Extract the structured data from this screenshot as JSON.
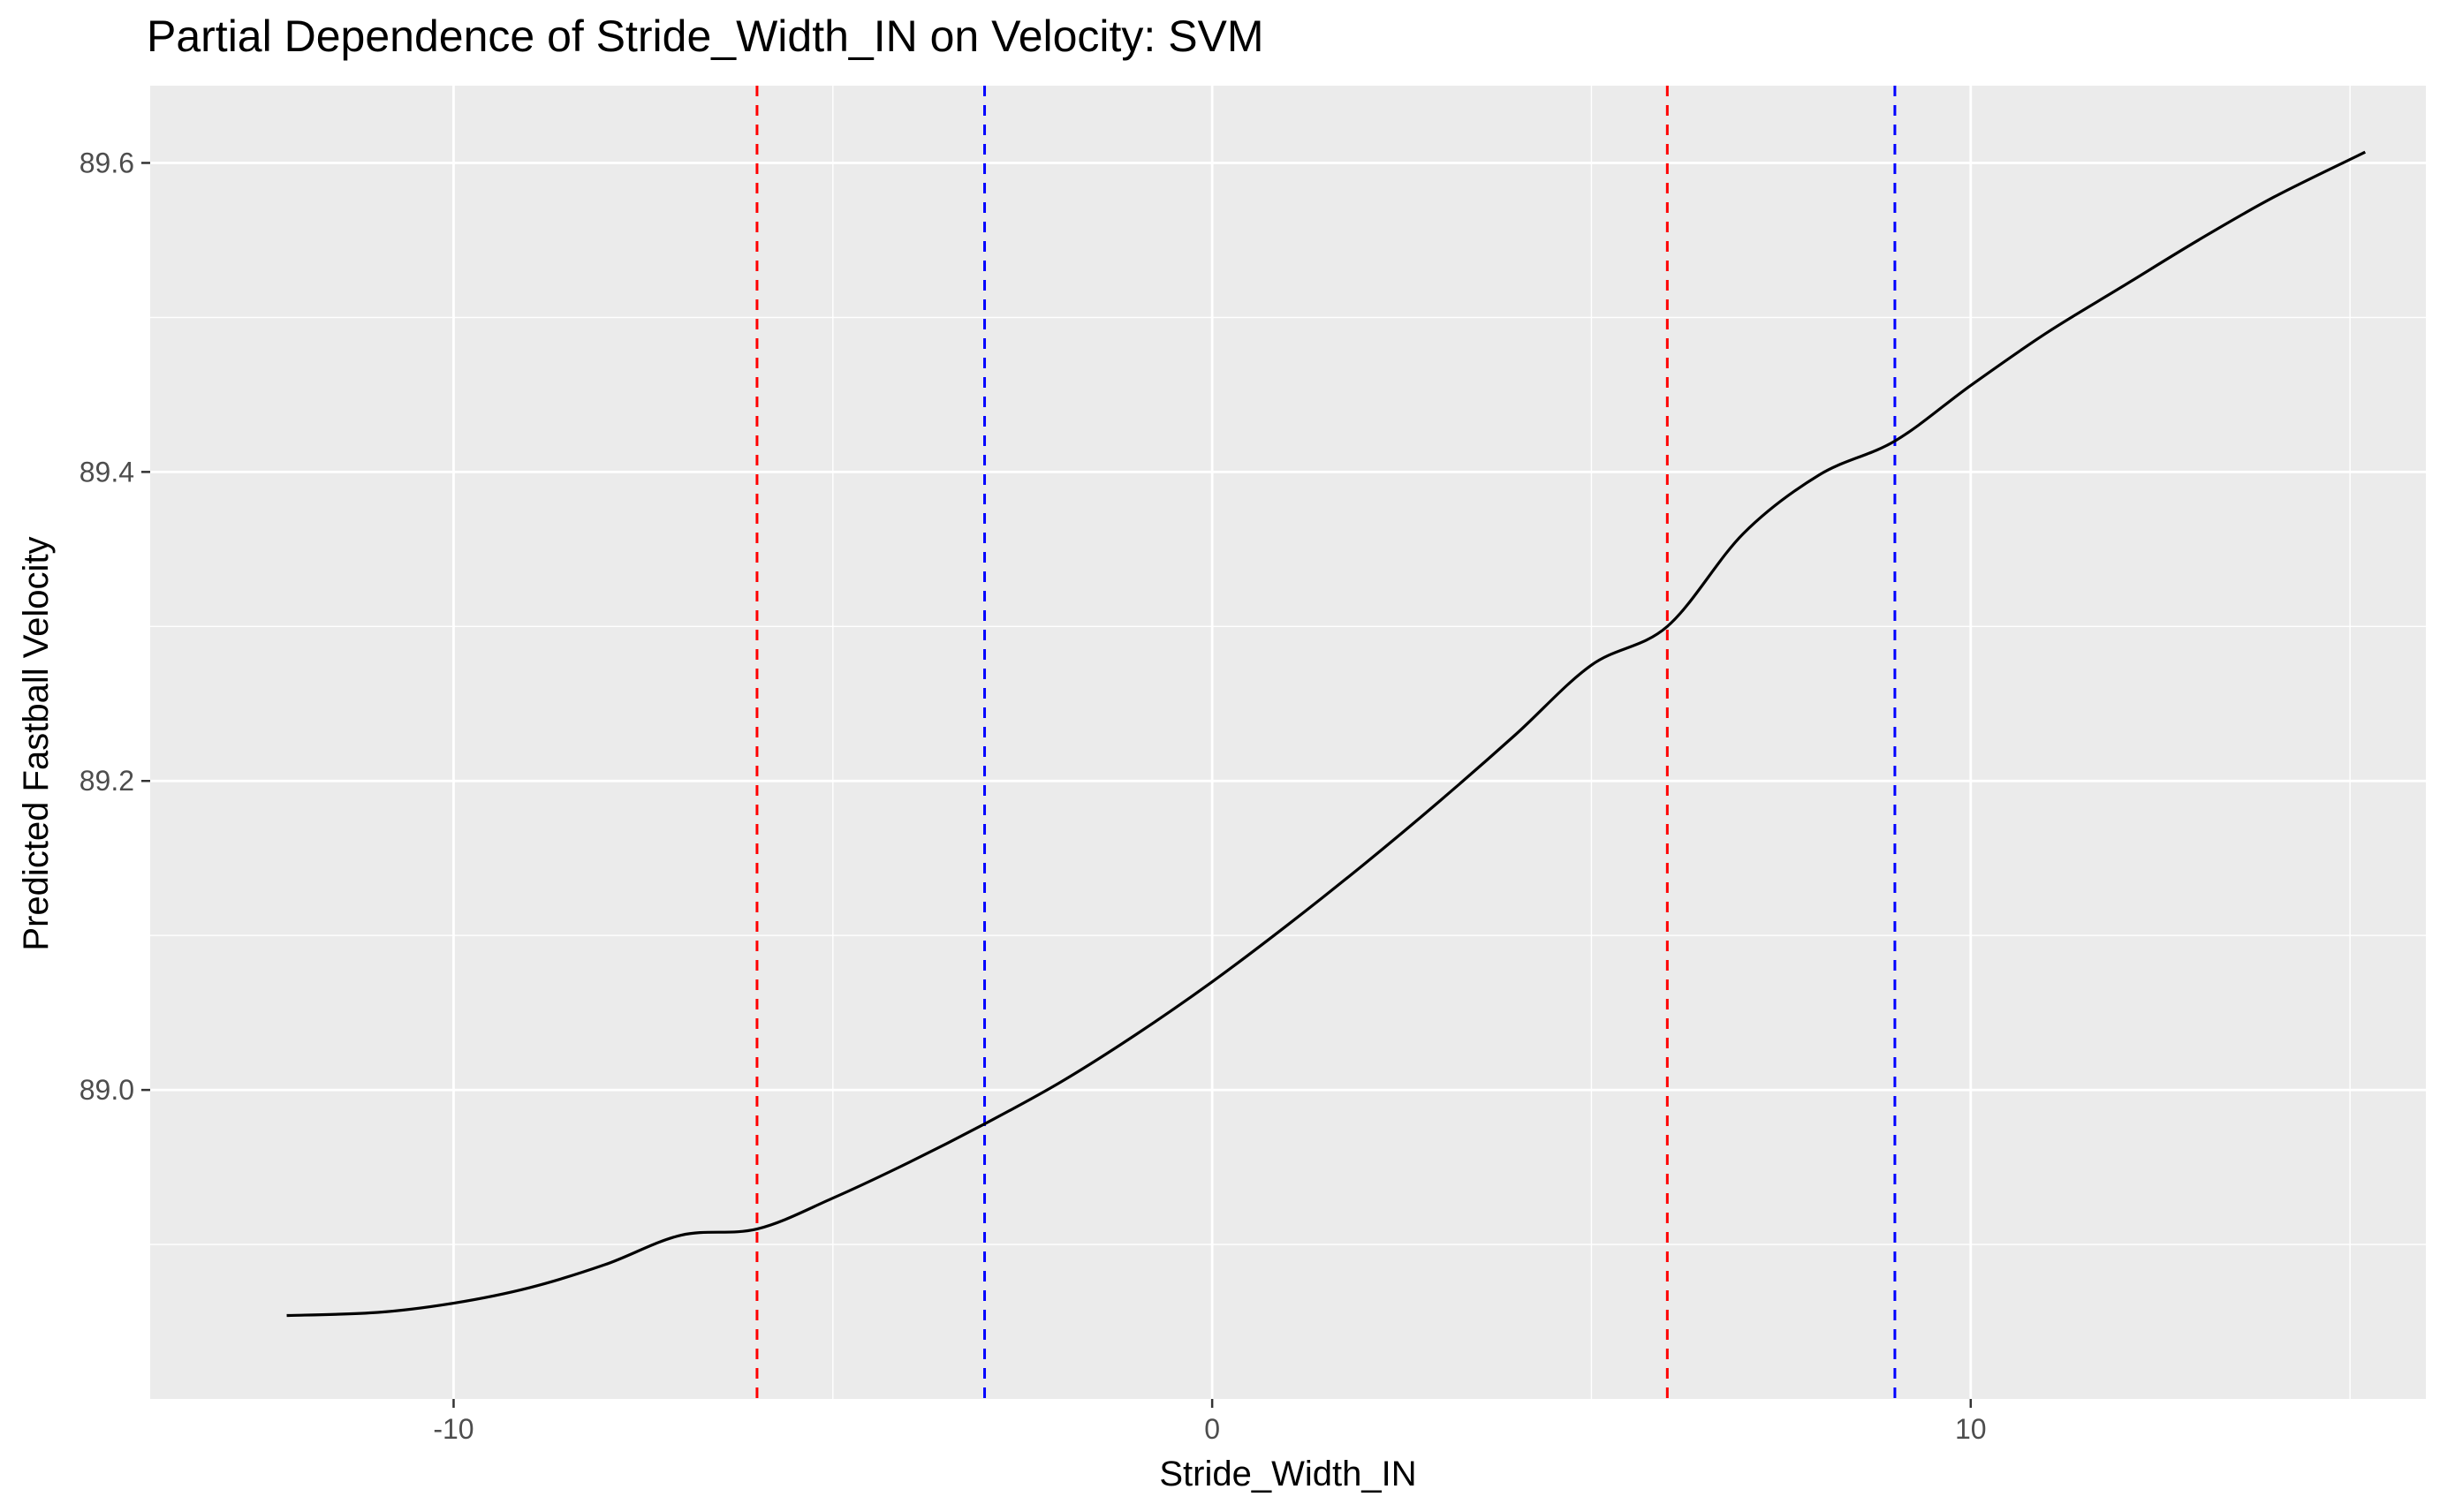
{
  "chart_data": {
    "type": "line",
    "title": "Partial Dependence of Stride_Width_IN on Velocity: SVM",
    "xlabel": "Stride_Width_IN",
    "ylabel": "Predicted Fastball Velocity",
    "xlim": [
      -14,
      16
    ],
    "ylim": [
      88.8,
      89.65
    ],
    "x_ticks": [
      -10,
      0,
      10
    ],
    "x_tick_labels": [
      "-10",
      "0",
      "10"
    ],
    "y_ticks": [
      89.0,
      89.2,
      89.4,
      89.6
    ],
    "y_tick_labels": [
      "89.0",
      "89.2",
      "89.4",
      "89.6"
    ],
    "grid": true,
    "legend": "none",
    "colors": {
      "panel": "#ebebeb",
      "grid": "#ffffff",
      "line": "#000000"
    },
    "series": [
      {
        "x": [
          -12.2,
          -11.0,
          -10.0,
          -9.0,
          -8.0,
          -7.0,
          -6.0,
          -5.0,
          -4.0,
          -3.0,
          -2.0,
          -1.0,
          0.0,
          1.0,
          2.0,
          3.0,
          4.0,
          5.0,
          6.0,
          7.0,
          8.0,
          9.0,
          10.0,
          11.0,
          12.0,
          13.0,
          14.0,
          15.2
        ],
        "y": [
          88.854,
          88.856,
          88.862,
          88.872,
          88.887,
          88.906,
          88.91,
          88.93,
          88.953,
          88.978,
          89.005,
          89.036,
          89.07,
          89.107,
          89.146,
          89.187,
          89.23,
          89.275,
          89.3,
          89.36,
          89.398,
          89.42,
          89.456,
          89.49,
          89.52,
          89.55,
          89.578,
          89.607
        ]
      }
    ],
    "vlines": [
      {
        "x": -6.0,
        "color": "#ff0000",
        "style": "dashed"
      },
      {
        "x": -3.0,
        "color": "#0000ff",
        "style": "dashed"
      },
      {
        "x": 6.0,
        "color": "#ff0000",
        "style": "dashed"
      },
      {
        "x": 9.0,
        "color": "#0000ff",
        "style": "dashed"
      }
    ]
  }
}
